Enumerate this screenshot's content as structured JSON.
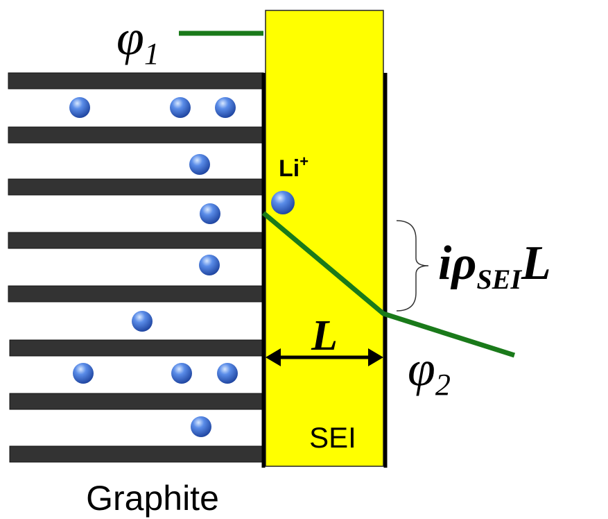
{
  "labels": {
    "phi1": {
      "symbol": "φ",
      "subscript": "1"
    },
    "li_ion": {
      "text": "Li",
      "superscript": "+"
    },
    "voltage_drop": {
      "prefix": "iρ",
      "subscript": "SEI",
      "suffix": "L"
    },
    "thickness": "L",
    "phi2": {
      "symbol": "φ",
      "subscript": "2"
    },
    "sei": "SEI",
    "graphite": "Graphite"
  }
}
